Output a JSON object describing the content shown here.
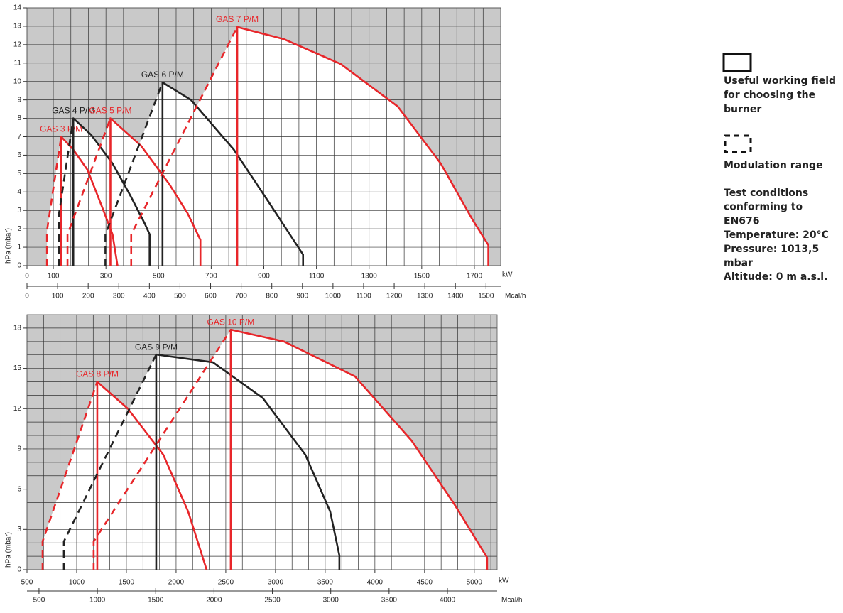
{
  "legend": {
    "working_field": [
      "Useful working field",
      "for choosing the",
      "burner"
    ],
    "modulation": "Modulation range",
    "conditions": [
      "Test conditions",
      "conforming to",
      "EN676",
      "Temperature: 20°C",
      "Pressure: 1013,5",
      "mbar",
      "Altitude: 0 m a.s.l."
    ]
  },
  "chart_data": [
    {
      "type": "line",
      "ylabel": "hPa (mbar)",
      "xlabel": "kW",
      "x2label": "Mcal/h",
      "grid": true,
      "xlim": [
        0,
        1800
      ],
      "xticks": [
        0,
        100,
        300,
        500,
        700,
        900,
        1100,
        1300,
        1500,
        1700
      ],
      "x2lim": [
        0,
        1548
      ],
      "x2ticks": [
        0,
        100,
        200,
        300,
        400,
        500,
        600,
        700,
        800,
        900,
        1000,
        1100,
        1200,
        1300,
        1400,
        1500
      ],
      "ylim": [
        0,
        14
      ],
      "yticks": [
        0,
        1,
        2,
        3,
        4,
        5,
        6,
        7,
        8,
        9,
        10,
        11,
        12,
        13,
        14
      ],
      "series": [
        {
          "name": "GAS 3 P/M",
          "color": "#e8262a",
          "x": [
            130,
            130,
            176,
            230,
            285,
            325,
            344
          ],
          "values": [
            0,
            7,
            6.3,
            5.2,
            3.2,
            1.7,
            0
          ],
          "modulation_x": [
            76,
            76,
            130
          ],
          "modulation_values": [
            0,
            1.9,
            7
          ]
        },
        {
          "name": "GAS 4 P/M",
          "color": "#222222",
          "x": [
            176,
            176,
            244,
            325,
            393,
            447,
            466,
            466
          ],
          "values": [
            0,
            8,
            7.1,
            5.55,
            3.8,
            2.3,
            1.7,
            0
          ],
          "modulation_x": [
            122,
            122,
            176
          ],
          "modulation_values": [
            0,
            2.85,
            8
          ]
        },
        {
          "name": "GAS 5 P/M",
          "color": "#e8262a",
          "x": [
            317,
            317,
            434,
            542,
            610,
            659,
            659
          ],
          "values": [
            0,
            8,
            6.5,
            4.4,
            2.85,
            1.4,
            0
          ],
          "modulation_x": [
            154,
            154,
            317
          ],
          "modulation_values": [
            0,
            1.7,
            8
          ]
        },
        {
          "name": "GAS 6 P/M",
          "color": "#222222",
          "x": [
            515,
            515,
            623,
            786,
            921,
            1049,
            1049
          ],
          "values": [
            0,
            9.95,
            9,
            6.3,
            3.4,
            0.6,
            0
          ],
          "modulation_x": [
            298,
            298,
            515
          ],
          "modulation_values": [
            0,
            1.7,
            9.95
          ]
        },
        {
          "name": "GAS 7 P/M",
          "color": "#e8262a",
          "x": [
            799,
            799,
            976,
            1192,
            1409,
            1572,
            1694,
            1753,
            1753
          ],
          "values": [
            0,
            12.96,
            12.3,
            10.95,
            8.64,
            5.55,
            2.47,
            1.12,
            0
          ],
          "modulation_x": [
            396,
            396,
            799
          ],
          "modulation_values": [
            0,
            1.7,
            12.96
          ]
        }
      ]
    },
    {
      "type": "line",
      "ylabel": "hPa (mbar)",
      "xlabel": "kW",
      "x2label": "Mcal/h",
      "grid": true,
      "xlim": [
        500,
        5230
      ],
      "xticks": [
        500,
        1000,
        1500,
        2000,
        2500,
        3000,
        3500,
        4000,
        4500,
        5000
      ],
      "x2lim": [
        397,
        4426
      ],
      "x2ticks": [
        500,
        1000,
        1500,
        2000,
        2500,
        3000,
        3500,
        4000
      ],
      "ylim": [
        0,
        19
      ],
      "yticks": [
        0,
        3,
        6,
        9,
        12,
        15,
        18
      ],
      "series": [
        {
          "name": "GAS 8 P/M",
          "color": "#e8262a",
          "x": [
            1207,
            1207,
            1514,
            1871,
            2121,
            2307
          ],
          "values": [
            0,
            14,
            12,
            8.57,
            4.34,
            0
          ],
          "modulation_x": [
            657,
            657,
            1207
          ],
          "modulation_values": [
            0,
            2.1,
            14
          ]
        },
        {
          "name": "GAS 9 P/M",
          "color": "#222222",
          "x": [
            1800,
            1800,
            2371,
            2871,
            3300,
            3550,
            3643,
            3643
          ],
          "values": [
            0,
            16.03,
            15.45,
            12.8,
            8.57,
            4.34,
            1.06,
            0
          ],
          "modulation_x": [
            871,
            871,
            1800
          ],
          "modulation_values": [
            0,
            2.1,
            16.03
          ]
        },
        {
          "name": "GAS 10 P/M",
          "color": "#e8262a",
          "x": [
            2550,
            2550,
            3086,
            3800,
            4371,
            4800,
            5129,
            5129
          ],
          "values": [
            0,
            17.88,
            17,
            14.4,
            9.6,
            4.87,
            0.9,
            0
          ],
          "modulation_x": [
            1171,
            1171,
            2550
          ],
          "modulation_values": [
            0,
            2.1,
            17.88
          ]
        }
      ]
    }
  ]
}
